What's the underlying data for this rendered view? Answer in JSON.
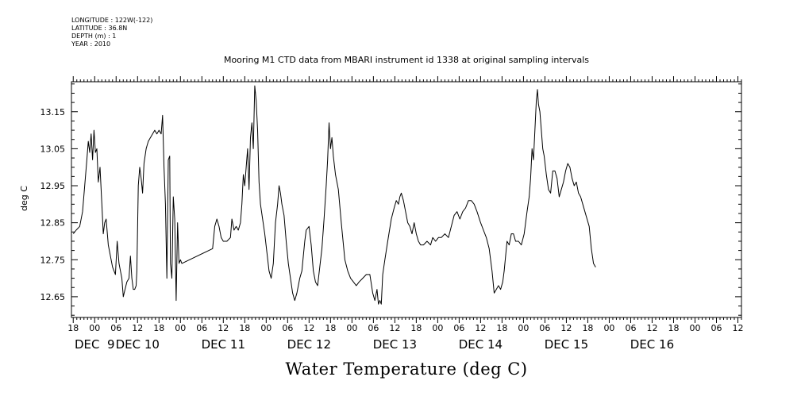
{
  "metadata": {
    "longitude": "LONGITUDE : 122W(-122)",
    "latitude": "LATITUDE : 36.8N",
    "depth": "DEPTH (m) : 1",
    "year": "YEAR : 2010"
  },
  "chart_data": {
    "type": "line",
    "title": "Mooring M1 CTD data from MBARI instrument id 1338 at original sampling intervals",
    "xlabel": "",
    "ylabel": "deg C",
    "footer": "Water Temperature (deg C)",
    "xlim_hours": [
      -6.5,
      181
    ],
    "ylim": [
      12.594,
      13.231
    ],
    "y_ticks": [
      12.65,
      12.75,
      12.85,
      12.95,
      13.05,
      13.15
    ],
    "y_tick_labels": [
      "12.65",
      "12.75",
      "12.85",
      "12.95",
      "13.05",
      "13.15"
    ],
    "x_hour_labels": [
      "18",
      "00",
      "06",
      "12",
      "18",
      "00",
      "06",
      "12",
      "18",
      "00",
      "06",
      "12",
      "18",
      "00",
      "06",
      "12",
      "18",
      "00",
      "06",
      "12",
      "18",
      "00",
      "06",
      "12",
      "18",
      "00",
      "06",
      "12",
      "18",
      "00",
      "06",
      "12"
    ],
    "x_day_labels": [
      {
        "label": "DEC  9",
        "hour": 0
      },
      {
        "label": "DEC 10",
        "hour": 12
      },
      {
        "label": "DEC 11",
        "hour": 36
      },
      {
        "label": "DEC 12",
        "hour": 60
      },
      {
        "label": "DEC 13",
        "hour": 84
      },
      {
        "label": "DEC 14",
        "hour": 108
      },
      {
        "label": "DEC 15",
        "hour": 132
      },
      {
        "label": "DEC 16",
        "hour": 156
      }
    ],
    "x_unit_note": "x values are hours from DEC 9 00:00, 2010",
    "series": [
      {
        "values": [
          [
            -6.0,
            12.82
          ],
          [
            -5.2,
            12.83
          ],
          [
            -4.2,
            12.84
          ],
          [
            -3.4,
            12.88
          ],
          [
            -2.8,
            12.95
          ],
          [
            -2.2,
            13.02
          ],
          [
            -1.8,
            13.07
          ],
          [
            -1.4,
            13.04
          ],
          [
            -1.0,
            13.09
          ],
          [
            -0.6,
            13.02
          ],
          [
            -0.2,
            13.1
          ],
          [
            0.2,
            13.04
          ],
          [
            0.6,
            13.05
          ],
          [
            1.0,
            12.96
          ],
          [
            1.5,
            13.0
          ],
          [
            2.0,
            12.9
          ],
          [
            2.4,
            12.82
          ],
          [
            2.8,
            12.85
          ],
          [
            3.2,
            12.86
          ],
          [
            3.8,
            12.79
          ],
          [
            4.2,
            12.77
          ],
          [
            4.6,
            12.75
          ],
          [
            5.0,
            12.73
          ],
          [
            5.4,
            12.72
          ],
          [
            5.8,
            12.71
          ],
          [
            6.3,
            12.8
          ],
          [
            6.8,
            12.74
          ],
          [
            7.2,
            12.72
          ],
          [
            7.6,
            12.7
          ],
          [
            8.0,
            12.65
          ],
          [
            8.5,
            12.67
          ],
          [
            9.0,
            12.69
          ],
          [
            9.6,
            12.7
          ],
          [
            10.0,
            12.76
          ],
          [
            10.4,
            12.7
          ],
          [
            10.8,
            12.67
          ],
          [
            11.2,
            12.67
          ],
          [
            11.6,
            12.68
          ],
          [
            11.8,
            12.72
          ],
          [
            12.2,
            12.95
          ],
          [
            12.6,
            13.0
          ],
          [
            13.0,
            12.97
          ],
          [
            13.4,
            12.93
          ],
          [
            13.8,
            13.01
          ],
          [
            14.4,
            13.05
          ],
          [
            15.0,
            13.07
          ],
          [
            15.6,
            13.08
          ],
          [
            16.2,
            13.09
          ],
          [
            16.8,
            13.1
          ],
          [
            17.4,
            13.09
          ],
          [
            18.0,
            13.1
          ],
          [
            18.6,
            13.09
          ],
          [
            19.0,
            13.14
          ],
          [
            19.4,
            13.0
          ],
          [
            19.8,
            12.9
          ],
          [
            20.2,
            12.7
          ],
          [
            20.6,
            13.02
          ],
          [
            21.0,
            13.03
          ],
          [
            21.2,
            12.74
          ],
          [
            21.6,
            12.7
          ],
          [
            22.0,
            12.92
          ],
          [
            22.4,
            12.86
          ],
          [
            22.8,
            12.64
          ],
          [
            23.2,
            12.85
          ],
          [
            23.6,
            12.74
          ],
          [
            24.0,
            12.75
          ],
          [
            24.4,
            12.74
          ],
          [
            33.0,
            12.78
          ],
          [
            33.6,
            12.84
          ],
          [
            34.2,
            12.86
          ],
          [
            34.8,
            12.84
          ],
          [
            35.4,
            12.81
          ],
          [
            36.0,
            12.8
          ],
          [
            37.0,
            12.8
          ],
          [
            38.0,
            12.81
          ],
          [
            38.4,
            12.86
          ],
          [
            39.0,
            12.83
          ],
          [
            39.6,
            12.84
          ],
          [
            40.2,
            12.83
          ],
          [
            40.8,
            12.85
          ],
          [
            41.2,
            12.9
          ],
          [
            41.6,
            12.98
          ],
          [
            42.0,
            12.95
          ],
          [
            42.4,
            13.0
          ],
          [
            42.8,
            13.05
          ],
          [
            43.2,
            12.94
          ],
          [
            43.6,
            13.08
          ],
          [
            44.0,
            13.12
          ],
          [
            44.4,
            13.05
          ],
          [
            44.8,
            13.22
          ],
          [
            45.2,
            13.18
          ],
          [
            45.6,
            13.1
          ],
          [
            46.0,
            12.96
          ],
          [
            46.4,
            12.9
          ],
          [
            47.0,
            12.86
          ],
          [
            47.6,
            12.82
          ],
          [
            48.2,
            12.77
          ],
          [
            48.8,
            12.72
          ],
          [
            49.4,
            12.7
          ],
          [
            50.0,
            12.74
          ],
          [
            50.6,
            12.85
          ],
          [
            51.2,
            12.9
          ],
          [
            51.6,
            12.95
          ],
          [
            52.0,
            12.93
          ],
          [
            52.4,
            12.9
          ],
          [
            53.0,
            12.87
          ],
          [
            53.6,
            12.8
          ],
          [
            54.2,
            12.74
          ],
          [
            54.8,
            12.7
          ],
          [
            55.4,
            12.66
          ],
          [
            56.0,
            12.64
          ],
          [
            56.6,
            12.66
          ],
          [
            57.4,
            12.7
          ],
          [
            58.0,
            12.72
          ],
          [
            58.4,
            12.76
          ],
          [
            58.8,
            12.8
          ],
          [
            59.2,
            12.83
          ],
          [
            60.0,
            12.84
          ],
          [
            60.6,
            12.79
          ],
          [
            61.2,
            12.72
          ],
          [
            61.8,
            12.69
          ],
          [
            62.4,
            12.68
          ],
          [
            63.0,
            12.73
          ],
          [
            63.6,
            12.78
          ],
          [
            64.2,
            12.86
          ],
          [
            64.8,
            12.95
          ],
          [
            65.2,
            13.02
          ],
          [
            65.6,
            13.12
          ],
          [
            66.0,
            13.05
          ],
          [
            66.4,
            13.08
          ],
          [
            66.8,
            13.03
          ],
          [
            67.4,
            12.98
          ],
          [
            68.2,
            12.94
          ],
          [
            69.0,
            12.85
          ],
          [
            70.0,
            12.75
          ],
          [
            70.8,
            12.72
          ],
          [
            71.6,
            12.7
          ],
          [
            72.4,
            12.69
          ],
          [
            73.2,
            12.68
          ],
          [
            74.0,
            12.69
          ],
          [
            75.0,
            12.7
          ],
          [
            76.0,
            12.71
          ],
          [
            77.0,
            12.71
          ],
          [
            77.8,
            12.66
          ],
          [
            78.4,
            12.64
          ],
          [
            79.0,
            12.67
          ],
          [
            79.4,
            12.63
          ],
          [
            79.8,
            12.64
          ],
          [
            80.2,
            12.63
          ],
          [
            80.6,
            12.71
          ],
          [
            81.2,
            12.75
          ],
          [
            82.0,
            12.8
          ],
          [
            83.0,
            12.86
          ],
          [
            83.8,
            12.89
          ],
          [
            84.4,
            12.91
          ],
          [
            85.0,
            12.9
          ],
          [
            85.4,
            12.92
          ],
          [
            85.8,
            12.93
          ],
          [
            86.4,
            12.91
          ],
          [
            87.0,
            12.88
          ],
          [
            87.6,
            12.85
          ],
          [
            88.2,
            12.84
          ],
          [
            88.8,
            12.82
          ],
          [
            89.4,
            12.85
          ],
          [
            90.0,
            12.82
          ],
          [
            90.6,
            12.8
          ],
          [
            91.2,
            12.79
          ],
          [
            92.0,
            12.79
          ],
          [
            93.0,
            12.8
          ],
          [
            94.0,
            12.79
          ],
          [
            94.6,
            12.81
          ],
          [
            95.4,
            12.8
          ],
          [
            96.2,
            12.81
          ],
          [
            97.0,
            12.81
          ],
          [
            98.0,
            12.82
          ],
          [
            99.0,
            12.81
          ],
          [
            99.8,
            12.84
          ],
          [
            100.6,
            12.87
          ],
          [
            101.4,
            12.88
          ],
          [
            102.2,
            12.86
          ],
          [
            103.0,
            12.88
          ],
          [
            103.8,
            12.89
          ],
          [
            104.6,
            12.91
          ],
          [
            105.4,
            12.91
          ],
          [
            106.2,
            12.9
          ],
          [
            107.0,
            12.88
          ],
          [
            108.0,
            12.85
          ],
          [
            108.8,
            12.83
          ],
          [
            109.6,
            12.81
          ],
          [
            110.4,
            12.78
          ],
          [
            111.2,
            12.72
          ],
          [
            111.8,
            12.66
          ],
          [
            112.4,
            12.67
          ],
          [
            113.0,
            12.68
          ],
          [
            113.6,
            12.67
          ],
          [
            114.2,
            12.69
          ],
          [
            114.6,
            12.72
          ],
          [
            115.0,
            12.76
          ],
          [
            115.4,
            12.8
          ],
          [
            116.0,
            12.79
          ],
          [
            116.6,
            12.82
          ],
          [
            117.2,
            12.82
          ],
          [
            117.8,
            12.8
          ],
          [
            118.6,
            12.8
          ],
          [
            119.4,
            12.79
          ],
          [
            120.2,
            12.82
          ],
          [
            121.0,
            12.88
          ],
          [
            121.6,
            12.92
          ],
          [
            122.0,
            12.97
          ],
          [
            122.4,
            13.05
          ],
          [
            122.8,
            13.02
          ],
          [
            123.2,
            13.1
          ],
          [
            123.6,
            13.18
          ],
          [
            123.9,
            13.21
          ],
          [
            124.2,
            13.17
          ],
          [
            124.6,
            13.15
          ],
          [
            125.0,
            13.1
          ],
          [
            125.4,
            13.05
          ],
          [
            125.8,
            13.03
          ],
          [
            126.4,
            12.98
          ],
          [
            127.0,
            12.94
          ],
          [
            127.6,
            12.93
          ],
          [
            128.2,
            12.99
          ],
          [
            128.8,
            12.99
          ],
          [
            129.4,
            12.97
          ],
          [
            130.0,
            12.92
          ],
          [
            130.6,
            12.94
          ],
          [
            131.2,
            12.96
          ],
          [
            131.8,
            12.99
          ],
          [
            132.4,
            13.01
          ],
          [
            133.0,
            13.0
          ],
          [
            133.6,
            12.97
          ],
          [
            134.2,
            12.95
          ],
          [
            134.8,
            12.96
          ],
          [
            135.4,
            12.93
          ],
          [
            136.0,
            12.92
          ],
          [
            136.6,
            12.9
          ],
          [
            137.2,
            12.88
          ],
          [
            137.8,
            12.86
          ],
          [
            138.4,
            12.84
          ],
          [
            139.0,
            12.78
          ],
          [
            139.6,
            12.74
          ],
          [
            140.2,
            12.73
          ]
        ]
      }
    ]
  }
}
